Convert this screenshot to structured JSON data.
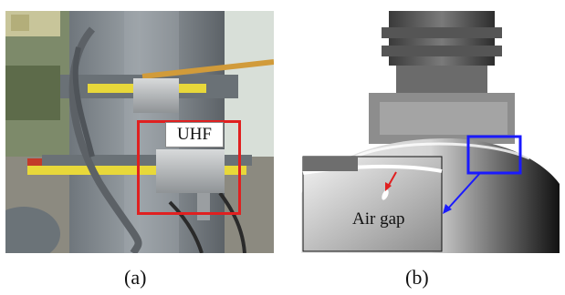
{
  "figure": {
    "panel_a": {
      "label_box_text": "UHF",
      "caption": "(a)",
      "highlight_color": "#e02020"
    },
    "panel_b": {
      "inset_label": "Air gap",
      "caption": "(b)",
      "highlight_color": "#1a1aff",
      "arrow_color": "#e02020"
    }
  }
}
